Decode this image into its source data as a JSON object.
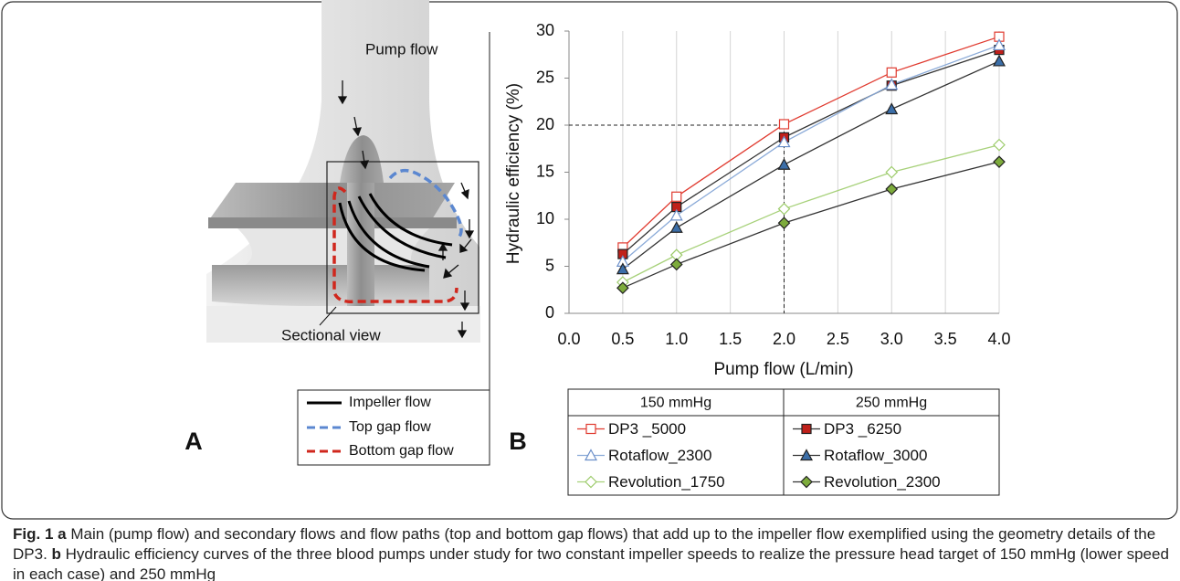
{
  "panel_a": {
    "label": "A",
    "pump_flow": "Pump flow",
    "sectional_view": "Sectional view",
    "legend": [
      "Impeller flow",
      "Top gap flow",
      "Bottom gap flow"
    ]
  },
  "chart_data": {
    "type": "line",
    "panel_label": "B",
    "x_label": "Pump flow (L/min)",
    "y_label": "Hydraulic efficiency (%)",
    "x": [
      0.5,
      1.0,
      2.0,
      3.0,
      4.0
    ],
    "xlim": [
      0,
      4
    ],
    "ylim": [
      0,
      30
    ],
    "xticks": [
      {
        "value": 0,
        "label": "0.0"
      },
      {
        "value": 0.5,
        "label": "0.5"
      },
      {
        "value": 1,
        "label": "1.0"
      },
      {
        "value": 1.5,
        "label": "1.5"
      },
      {
        "value": 2,
        "label": "2.0"
      },
      {
        "value": 2.5,
        "label": "2.5"
      },
      {
        "value": 3,
        "label": "3.0"
      },
      {
        "value": 3.5,
        "label": "3.5"
      },
      {
        "value": 4,
        "label": "4.0"
      }
    ],
    "yticks": [
      0,
      5,
      10,
      15,
      20,
      25,
      30
    ],
    "grid": "x",
    "reference": {
      "x": 2,
      "y": 20
    },
    "legend_headers": [
      "150 mmHg",
      "250 mmHg"
    ],
    "series": [
      {
        "name": "DP3 _5000",
        "color": "#e03a2f",
        "line_color": "#e03a2f",
        "marker": "square",
        "filled": false,
        "values": [
          7.0,
          12.4,
          20.1,
          25.6,
          29.4
        ]
      },
      {
        "name": "DP3 _6250",
        "color": "#c0201a",
        "line_color": "#333333",
        "marker": "square",
        "filled": true,
        "values": [
          6.3,
          11.3,
          18.7,
          24.2,
          28.0
        ]
      },
      {
        "name": "Rotaflow_2300",
        "color": "#6b8fc9",
        "line_color": "#8aaad8",
        "marker": "triangle",
        "filled": false,
        "values": [
          5.5,
          10.4,
          18.2,
          24.3,
          28.5
        ]
      },
      {
        "name": "Rotaflow_3000",
        "color": "#3b6ea8",
        "line_color": "#333333",
        "marker": "triangle",
        "filled": true,
        "values": [
          4.7,
          9.1,
          15.8,
          21.7,
          26.8
        ]
      },
      {
        "name": "Revolution_1750",
        "color": "#9ccb6a",
        "line_color": "#a7d17a",
        "marker": "diamond",
        "filled": false,
        "values": [
          3.3,
          6.2,
          11.1,
          15.0,
          17.9
        ]
      },
      {
        "name": "Revolution_2300",
        "color": "#7dab3c",
        "line_color": "#333333",
        "marker": "diamond",
        "filled": true,
        "values": [
          2.7,
          5.2,
          9.6,
          13.2,
          16.1
        ]
      }
    ]
  },
  "caption": {
    "label": "Fig. 1",
    "a_marker": "a",
    "a_text": "Main (pump flow) and secondary flows and flow paths (top and bottom gap flows) that add up to the impeller flow exemplified using the geometry details of the DP3.",
    "b_marker": "b",
    "b_text": "Hydraulic efficiency curves of the three blood pumps under study for two constant impeller speeds to realize the pressure head target of 150 mmHg (lower speed in each case) and 250 mmHg"
  }
}
